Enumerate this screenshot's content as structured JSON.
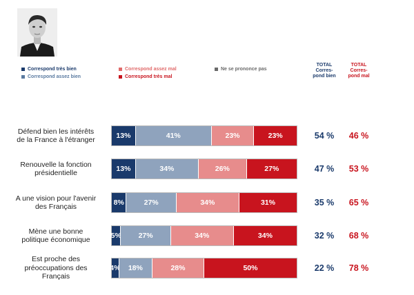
{
  "colors": {
    "tres_bien": "#1a3a6b",
    "assez_bien": "#8fa3bd",
    "assez_mal": "#e78c8c",
    "tres_mal": "#c8141e",
    "nspp": "#8a8a8a",
    "total_bien": "#1a3a6b",
    "total_mal": "#c8141e"
  },
  "legend": [
    {
      "label": "Correspond très bien",
      "color": "#1a3a6b"
    },
    {
      "label": "Correspond assez bien",
      "color": "#5a7aa0"
    },
    {
      "label": "Correspond assez mal",
      "color": "#e06a6a"
    },
    {
      "label": "Correspond très mal",
      "color": "#c8141e"
    },
    {
      "label": "Ne se prononce pas",
      "color": "#6a6a6a"
    }
  ],
  "column_headers": {
    "total_bien": [
      "TOTAL",
      "Corres-",
      "pond bien"
    ],
    "total_mal": [
      "TOTAL",
      "Corres-",
      "pond mal"
    ]
  },
  "chart_data": {
    "type": "bar",
    "orientation": "horizontal",
    "stacked": true,
    "categories": [
      [
        "Défend bien les intérêts",
        "de la France à l'étranger"
      ],
      [
        "Renouvelle la fonction",
        "présidentielle"
      ],
      [
        "A une vision pour l'avenir",
        "des Français"
      ],
      [
        "Mène une bonne",
        "politique économique"
      ],
      [
        "Est proche des",
        "préoccupations des",
        "Français"
      ]
    ],
    "series": [
      {
        "name": "Correspond très bien",
        "values": [
          13,
          13,
          8,
          5,
          4
        ],
        "labels": [
          "13%",
          "13%",
          "8%",
          "5%",
          "4%"
        ]
      },
      {
        "name": "Correspond assez bien",
        "values": [
          41,
          34,
          27,
          27,
          18
        ],
        "labels": [
          "41%",
          "34%",
          "27%",
          "27%",
          "18%"
        ]
      },
      {
        "name": "Correspond assez mal",
        "values": [
          23,
          26,
          34,
          34,
          28
        ],
        "labels": [
          "23%",
          "26%",
          "34%",
          "34%",
          "28%"
        ]
      },
      {
        "name": "Correspond très mal",
        "values": [
          23,
          27,
          31,
          34,
          50
        ],
        "labels": [
          "23%",
          "27%",
          "31%",
          "34%",
          "50%"
        ]
      }
    ],
    "totals": {
      "bien": [
        "54 %",
        "47 %",
        "35 %",
        "32 %",
        "22 %"
      ],
      "mal": [
        "46 %",
        "53 %",
        "65 %",
        "68 %",
        "78 %"
      ]
    }
  }
}
